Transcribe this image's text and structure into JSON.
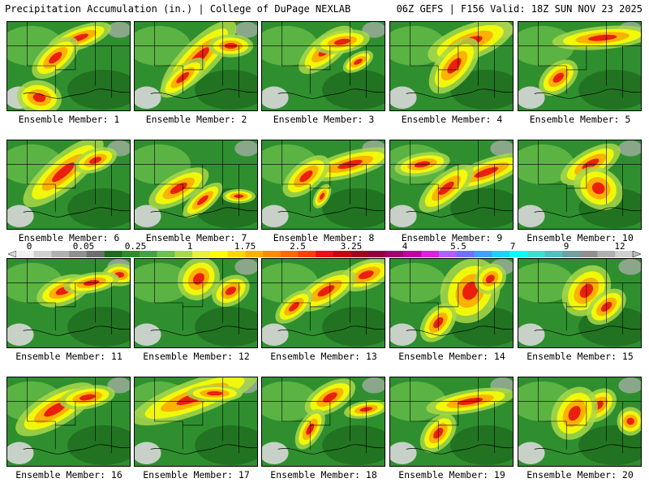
{
  "header": {
    "left_title": "Precipitation Accumulation (in.) | College of DuPage NEXLAB",
    "right_title": "06Z GEFS | F156 Valid: 18Z SUN NOV 23 2025"
  },
  "panels": [
    {
      "label": "Ensemble Member: 1"
    },
    {
      "label": "Ensemble Member: 2"
    },
    {
      "label": "Ensemble Member: 3"
    },
    {
      "label": "Ensemble Member: 4"
    },
    {
      "label": "Ensemble Member: 5"
    },
    {
      "label": "Ensemble Member: 6"
    },
    {
      "label": "Ensemble Member: 7"
    },
    {
      "label": "Ensemble Member: 8"
    },
    {
      "label": "Ensemble Member: 9"
    },
    {
      "label": "Ensemble Member: 10"
    },
    {
      "label": "Ensemble Member: 11"
    },
    {
      "label": "Ensemble Member: 12"
    },
    {
      "label": "Ensemble Member: 13"
    },
    {
      "label": "Ensemble Member: 14"
    },
    {
      "label": "Ensemble Member: 15"
    },
    {
      "label": "Ensemble Member: 16"
    },
    {
      "label": "Ensemble Member: 17"
    },
    {
      "label": "Ensemble Member: 18"
    },
    {
      "label": "Ensemble Member: 19"
    },
    {
      "label": "Ensemble Member: 20"
    }
  ],
  "colorbar": {
    "tick_labels": [
      "0",
      "0.05",
      "0.25",
      "1",
      "1.75",
      "2.5",
      "3.25",
      "4",
      "5.5",
      "7",
      "9",
      "12"
    ],
    "colors": [
      "#f0f0f0",
      "#d0d0d0",
      "#b0b0b0",
      "#909090",
      "#6e6e6e",
      "#1e6b1e",
      "#2e8b2e",
      "#3fa63f",
      "#6cc24a",
      "#a8d84a",
      "#e8f040",
      "#ffff00",
      "#ffd700",
      "#ffb000",
      "#ff8c00",
      "#ff6a00",
      "#ff4000",
      "#e81010",
      "#c80010",
      "#a00020",
      "#900040",
      "#a00070",
      "#c000a0",
      "#e020e0",
      "#b060ff",
      "#7070ff",
      "#40a0ff",
      "#20d0ff",
      "#00ffff",
      "#40e0d0",
      "#50c0c0",
      "#70a0a0",
      "#909090",
      "#b0b0b0",
      "#d0d0d0"
    ]
  }
}
